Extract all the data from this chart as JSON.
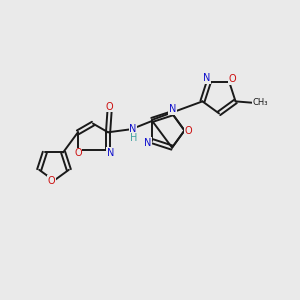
{
  "background_color": "#eaeaea",
  "fig_width": 3.0,
  "fig_height": 3.0,
  "dpi": 100,
  "bond_color": "#1a1a1a",
  "N_color": "#1010cc",
  "O_color": "#cc1010",
  "H_color": "#40a0a0",
  "font_size_atom": 8.0,
  "font_size_small": 6.5,
  "xlim": [
    0,
    10
  ],
  "ylim": [
    0,
    10
  ]
}
